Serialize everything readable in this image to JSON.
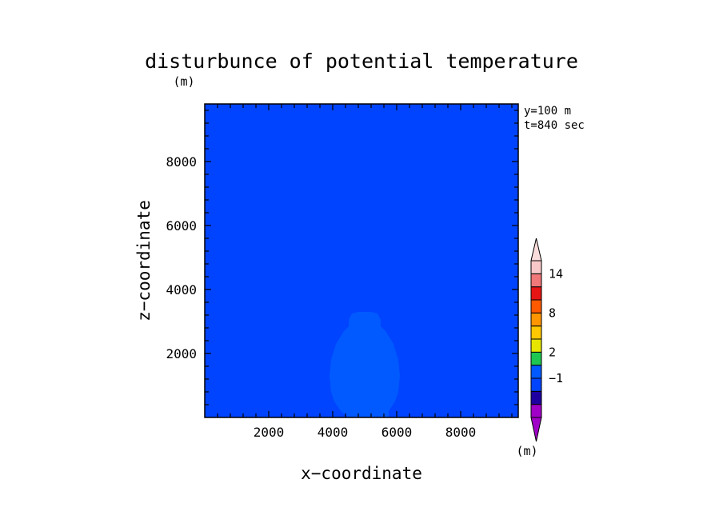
{
  "chart_data": {
    "type": "heatmap",
    "title": "disturbunce of potential temperature",
    "title_unit": "(m)",
    "xlabel": "x−coordinate",
    "ylabel": "z−coordinate",
    "xlim": [
      0,
      9800
    ],
    "ylim": [
      0,
      9800
    ],
    "xticks": [
      2000,
      4000,
      6000,
      8000
    ],
    "yticks": [
      2000,
      4000,
      6000,
      8000
    ],
    "xtick_labels": [
      "2000",
      "4000",
      "6000",
      "8000"
    ],
    "ytick_labels": [
      "2000",
      "4000",
      "6000",
      "8000"
    ],
    "annotations": [
      "y=100 m",
      "t=840 sec"
    ],
    "background_color": "#0044ff",
    "feature": {
      "description_color": "#005aff",
      "outline_x": [
        4250,
        4050,
        3950,
        3900,
        3950,
        4100,
        4350,
        4500,
        4500,
        4600,
        4800,
        5200,
        5400,
        5500,
        5500,
        5650,
        5900,
        6050,
        6100,
        6050,
        5950,
        5750,
        5750,
        5500,
        5000,
        4500,
        4250
      ],
      "outline_y": [
        200,
        500,
        800,
        1300,
        1800,
        2300,
        2700,
        2850,
        3050,
        3250,
        3300,
        3300,
        3250,
        3050,
        2850,
        2700,
        2300,
        1800,
        1300,
        800,
        500,
        200,
        0,
        0,
        0,
        0,
        200
      ]
    },
    "colorbar": {
      "unit": "(m)",
      "labels": [
        "14",
        "8",
        "2",
        "−1"
      ],
      "label_levels": [
        14,
        8,
        2,
        -1
      ],
      "levels": [
        -4,
        -3,
        -2,
        -1,
        0,
        2,
        4,
        6,
        8,
        10,
        12,
        14,
        16
      ],
      "colors": [
        "#a000c8",
        "#1e00a0",
        "#0044ff",
        "#005aff",
        "#1ec850",
        "#e6e600",
        "#ffc800",
        "#ff9600",
        "#ff5a00",
        "#e61414",
        "#f07878",
        "#f8c8c8"
      ],
      "extend_low_color": "#a000c8",
      "extend_high_color": "#fadcdc"
    }
  }
}
